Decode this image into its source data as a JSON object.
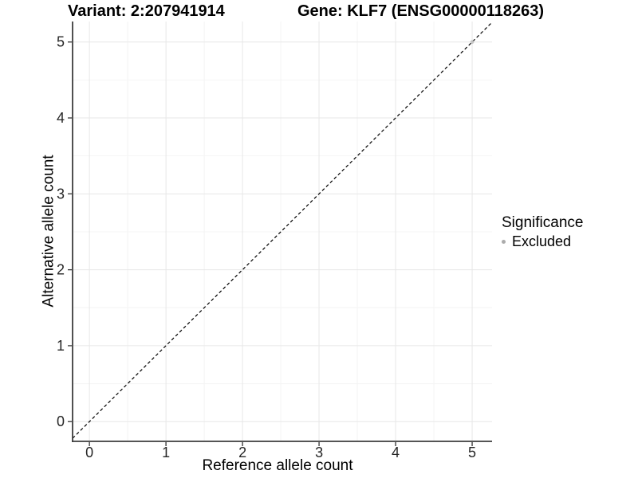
{
  "figure": {
    "background": "#ffffff"
  },
  "chart_data": {
    "type": "scatter",
    "titles": {
      "left": "Variant: 2:207941914",
      "right": "Gene: KLF7 (ENSG00000118263)"
    },
    "x_axis": {
      "label": "Reference allele count",
      "ticks": [
        0,
        1,
        2,
        3,
        4,
        5
      ],
      "tick_labels": [
        "0",
        "1",
        "2",
        "3",
        "4",
        "5"
      ],
      "lim": [
        -0.22,
        5.26
      ],
      "minor_step": 0.5
    },
    "y_axis": {
      "label": "Alternative allele count",
      "ticks": [
        0,
        1,
        2,
        3,
        4,
        5
      ],
      "tick_labels": [
        "0",
        "1",
        "2",
        "3",
        "4",
        "5"
      ],
      "lim": [
        -0.26,
        5.27
      ],
      "minor_step": 0.5
    },
    "grid": {
      "major": true,
      "minor": true
    },
    "reference_line": {
      "type": "abline",
      "slope": 1,
      "intercept": 0,
      "linetype": "dashed",
      "color": "#000000"
    },
    "series": [
      {
        "name": "Excluded",
        "color": "#bdbdbd",
        "opacity": 0.8,
        "points": [
          {
            "x": 5,
            "y": 5
          }
        ]
      }
    ],
    "legend": {
      "title": "Significance",
      "position": "right",
      "items": [
        {
          "label": "Excluded",
          "color": "#ababab"
        }
      ]
    },
    "colors": {
      "axis_line": "#3d3d3d",
      "tick_mark": "#333333",
      "grid_major": "#e7e7e7",
      "grid_minor": "#f4f4f4",
      "tick_label": "#262626",
      "text": "#000000"
    }
  }
}
